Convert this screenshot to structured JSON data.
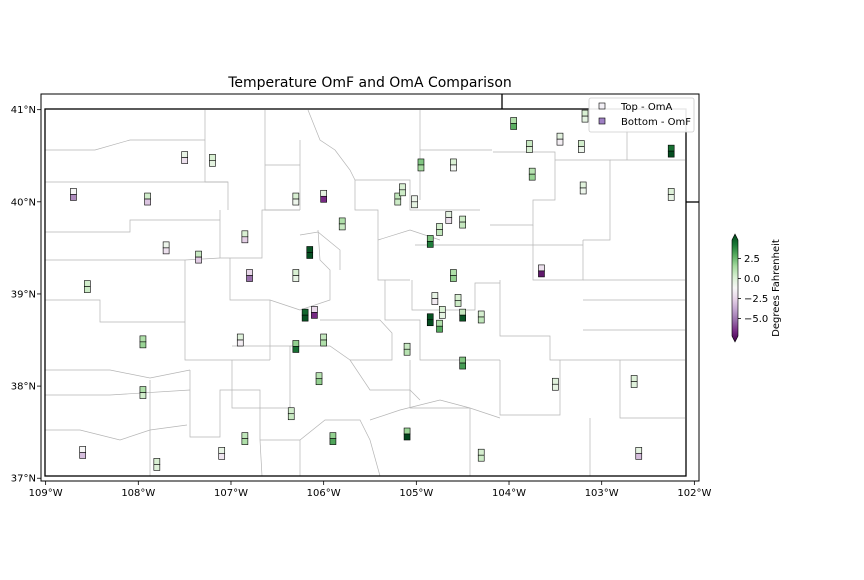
{
  "chart_data": {
    "type": "map-scatter",
    "title": "Temperature OmF and OmA Comparison",
    "projection": "lon/lat",
    "xlim": [
      -109.05,
      -101.95
    ],
    "ylim": [
      36.97,
      41.17
    ],
    "x_ticks": [
      -109,
      -108,
      -107,
      -106,
      -105,
      -104,
      -103,
      -102
    ],
    "x_tick_labels": [
      "109°W",
      "108°W",
      "107°W",
      "106°W",
      "105°W",
      "104°W",
      "103°W",
      "102°W"
    ],
    "y_ticks": [
      37,
      38,
      39,
      40,
      41
    ],
    "y_tick_labels": [
      "37°N",
      "38°N",
      "39°N",
      "40°N",
      "41°N"
    ],
    "legend": {
      "position": "top-right",
      "entries": [
        {
          "label": "Top - OmA",
          "color": "#f3f0f6"
        },
        {
          "label": "Bottom - OmF",
          "color": "#9f80c4"
        }
      ]
    },
    "colorbar": {
      "label": "Degrees Fahrenheit",
      "vmin": -7.2,
      "vmax": 4.8,
      "ticks": [
        2.5,
        0.0,
        -2.5,
        -5.0
      ],
      "tick_labels": [
        "2.5",
        "0.0",
        "−2.5",
        "−5.0"
      ],
      "extend": "both",
      "colormap": "PRGn",
      "stops": [
        "#40004b",
        "#762a83",
        "#9970ab",
        "#c2a5cf",
        "#e7d4e8",
        "#f7f7f7",
        "#d9f0d3",
        "#a6dba0",
        "#5aae61",
        "#1b7837",
        "#00441b"
      ]
    },
    "stations": [
      {
        "lon": -108.7,
        "lat": 40.08,
        "oma": -1.2,
        "omf": -4.2
      },
      {
        "lon": -107.9,
        "lat": 40.03,
        "oma": 0.2,
        "omf": -2.8
      },
      {
        "lon": -107.5,
        "lat": 40.48,
        "oma": -0.6,
        "omf": -2.0
      },
      {
        "lon": -107.2,
        "lat": 40.45,
        "oma": 0.0,
        "omf": -0.4
      },
      {
        "lon": -106.3,
        "lat": 40.03,
        "oma": 0.0,
        "omf": -0.8
      },
      {
        "lon": -106.0,
        "lat": 40.06,
        "oma": -0.4,
        "omf": -6.0
      },
      {
        "lon": -105.8,
        "lat": 39.76,
        "oma": 1.0,
        "omf": 0.4
      },
      {
        "lon": -105.2,
        "lat": 40.03,
        "oma": 0.6,
        "omf": 0.3
      },
      {
        "lon": -105.15,
        "lat": 40.13,
        "oma": 0.0,
        "omf": 0.3
      },
      {
        "lon": -105.02,
        "lat": 40.0,
        "oma": -0.8,
        "omf": -0.5
      },
      {
        "lon": -104.95,
        "lat": 40.4,
        "oma": 1.8,
        "omf": 1.2
      },
      {
        "lon": -104.6,
        "lat": 40.4,
        "oma": 0.0,
        "omf": -1.0
      },
      {
        "lon": -104.65,
        "lat": 39.83,
        "oma": -0.5,
        "omf": -2.0
      },
      {
        "lon": -104.5,
        "lat": 39.78,
        "oma": 0.3,
        "omf": 0.5
      },
      {
        "lon": -104.75,
        "lat": 39.7,
        "oma": 0.2,
        "omf": 0.6
      },
      {
        "lon": -104.85,
        "lat": 39.57,
        "oma": 1.8,
        "omf": 3.5
      },
      {
        "lon": -104.6,
        "lat": 39.2,
        "oma": 1.0,
        "omf": 1.5
      },
      {
        "lon": -103.95,
        "lat": 40.85,
        "oma": 1.0,
        "omf": 2.4
      },
      {
        "lon": -103.78,
        "lat": 40.6,
        "oma": 0.4,
        "omf": 0.0
      },
      {
        "lon": -103.75,
        "lat": 40.3,
        "oma": 0.8,
        "omf": 1.4
      },
      {
        "lon": -103.45,
        "lat": 40.68,
        "oma": -0.4,
        "omf": -1.5
      },
      {
        "lon": -103.22,
        "lat": 40.6,
        "oma": 0.2,
        "omf": -0.8
      },
      {
        "lon": -103.18,
        "lat": 40.93,
        "oma": 0.0,
        "omf": -0.5
      },
      {
        "lon": -103.2,
        "lat": 40.15,
        "oma": -0.3,
        "omf": -0.8
      },
      {
        "lon": -102.25,
        "lat": 40.55,
        "oma": 3.8,
        "omf": 4.6
      },
      {
        "lon": -102.25,
        "lat": 40.08,
        "oma": -0.2,
        "omf": -0.6
      },
      {
        "lon": -103.65,
        "lat": 39.25,
        "oma": -2.0,
        "omf": -6.5
      },
      {
        "lon": -107.7,
        "lat": 39.5,
        "oma": -0.8,
        "omf": -2.0
      },
      {
        "lon": -107.35,
        "lat": 39.4,
        "oma": 0.4,
        "omf": -2.6
      },
      {
        "lon": -106.85,
        "lat": 39.62,
        "oma": 0.0,
        "omf": -2.5
      },
      {
        "lon": -106.8,
        "lat": 39.2,
        "oma": -2.3,
        "omf": -4.8
      },
      {
        "lon": -106.3,
        "lat": 39.2,
        "oma": 0.0,
        "omf": -0.6
      },
      {
        "lon": -106.15,
        "lat": 39.45,
        "oma": 4.5,
        "omf": 4.6
      },
      {
        "lon": -108.55,
        "lat": 39.08,
        "oma": 0.2,
        "omf": 0.3
      },
      {
        "lon": -107.95,
        "lat": 38.48,
        "oma": 1.0,
        "omf": 1.4
      },
      {
        "lon": -106.9,
        "lat": 38.5,
        "oma": -0.3,
        "omf": -1.5
      },
      {
        "lon": -106.2,
        "lat": 38.77,
        "oma": 4.0,
        "omf": 4.5
      },
      {
        "lon": -106.1,
        "lat": 38.8,
        "oma": -2.2,
        "omf": -6.0
      },
      {
        "lon": -106.0,
        "lat": 38.5,
        "oma": 0.5,
        "omf": 1.0
      },
      {
        "lon": -106.3,
        "lat": 38.43,
        "oma": 1.5,
        "omf": 3.8
      },
      {
        "lon": -105.1,
        "lat": 38.4,
        "oma": 0.4,
        "omf": 0.8
      },
      {
        "lon": -104.8,
        "lat": 38.95,
        "oma": -0.6,
        "omf": -1.6
      },
      {
        "lon": -104.55,
        "lat": 38.93,
        "oma": 0.0,
        "omf": 0.3
      },
      {
        "lon": -104.72,
        "lat": 38.8,
        "oma": 0.0,
        "omf": -0.5
      },
      {
        "lon": -104.85,
        "lat": 38.72,
        "oma": 4.5,
        "omf": 4.6
      },
      {
        "lon": -104.75,
        "lat": 38.65,
        "oma": 1.0,
        "omf": 2.5
      },
      {
        "lon": -104.5,
        "lat": 38.77,
        "oma": 0.5,
        "omf": 4.4
      },
      {
        "lon": -104.3,
        "lat": 38.75,
        "oma": 0.1,
        "omf": 0.6
      },
      {
        "lon": -104.5,
        "lat": 38.25,
        "oma": 1.8,
        "omf": 2.8
      },
      {
        "lon": -106.05,
        "lat": 38.08,
        "oma": 0.8,
        "omf": 1.5
      },
      {
        "lon": -106.35,
        "lat": 37.7,
        "oma": 0.2,
        "omf": 0.4
      },
      {
        "lon": -107.95,
        "lat": 37.93,
        "oma": 1.0,
        "omf": 0.2
      },
      {
        "lon": -106.85,
        "lat": 37.43,
        "oma": 0.6,
        "omf": 1.0
      },
      {
        "lon": -105.9,
        "lat": 37.43,
        "oma": 1.5,
        "omf": 2.6
      },
      {
        "lon": -105.1,
        "lat": 37.48,
        "oma": 1.4,
        "omf": 4.8
      },
      {
        "lon": -104.3,
        "lat": 37.25,
        "oma": 0.1,
        "omf": 0.3
      },
      {
        "lon": -103.5,
        "lat": 38.02,
        "oma": -0.3,
        "omf": -0.5
      },
      {
        "lon": -102.65,
        "lat": 38.05,
        "oma": -0.2,
        "omf": -0.3
      },
      {
        "lon": -102.6,
        "lat": 37.27,
        "oma": -0.5,
        "omf": -3.0
      },
      {
        "lon": -108.6,
        "lat": 37.28,
        "oma": -1.2,
        "omf": -3.0
      },
      {
        "lon": -107.8,
        "lat": 37.15,
        "oma": 0.0,
        "omf": -0.2
      },
      {
        "lon": -107.1,
        "lat": 37.27,
        "oma": -0.6,
        "omf": -1.8
      }
    ]
  }
}
